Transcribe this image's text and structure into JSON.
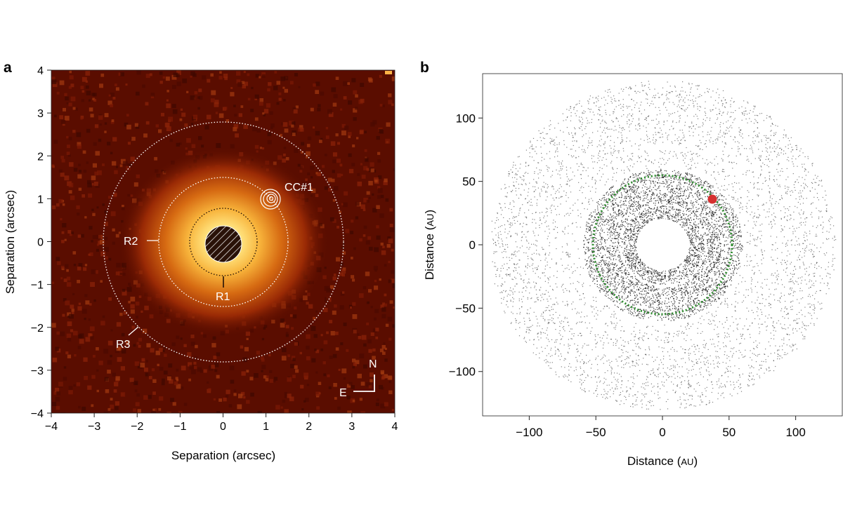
{
  "panel_a": {
    "letter": "a",
    "xlabel": "Separation (arcsec)",
    "ylabel": "Separation (arcsec)",
    "ticks": [
      "−4",
      "−3",
      "−2",
      "−1",
      "0",
      "1",
      "2",
      "3",
      "4"
    ],
    "tick_values": [
      -4,
      -3,
      -2,
      -1,
      0,
      1,
      2,
      3,
      4
    ],
    "ring_labels": {
      "r1": "R1",
      "r2": "R2",
      "r3": "R3"
    },
    "companion_label": "CC#1",
    "compass": {
      "north": "N",
      "east": "E"
    },
    "colors": {
      "background": "#5a0d00",
      "glow_inner": "#ffd46a",
      "glow_mid": "#e07a12",
      "rings": "#ffffff"
    }
  },
  "panel_b": {
    "letter": "b",
    "xlabel_prefix": "Distance (",
    "xlabel_unit": "AU",
    "xlabel_suffix": ")",
    "ylabel_prefix": "Distance (",
    "ylabel_unit": "AU",
    "ylabel_suffix": ")",
    "xticks": [
      "−100",
      "−50",
      "0",
      "50",
      "100"
    ],
    "xtick_values": [
      -100,
      -50,
      0,
      50,
      100
    ],
    "yticks": [
      "100",
      "50",
      "0",
      "−50",
      "−100"
    ],
    "ytick_values": [
      100,
      50,
      0,
      -50,
      -100
    ],
    "colors": {
      "particles": "#1a1a1a",
      "orbit": "#2e8b2e",
      "planet": "#d63030"
    }
  },
  "chart_data": [
    {
      "type": "scatter",
      "title": "",
      "xlabel": "Separation (arcsec)",
      "ylabel": "Separation (arcsec)",
      "xlim": [
        -4,
        4
      ],
      "ylim": [
        -4,
        4
      ],
      "ring_radii_arcsec": {
        "R1": 0.75,
        "R2": 1.5,
        "R3": 2.8
      },
      "companion": {
        "label": "CC#1",
        "x": 1.1,
        "y": 1.0
      },
      "masked_core_radius_arcsec": 0.4,
      "grid": false
    },
    {
      "type": "scatter",
      "title": "",
      "xlabel": "Distance (AU)",
      "ylabel": "Distance (AU)",
      "xlim": [
        -135,
        135
      ],
      "ylim": [
        -135,
        135
      ],
      "disk_outer_radius_au": 130,
      "inner_hole_radius_au": 19,
      "planet": {
        "x": 37,
        "y": 36
      },
      "planet_orbit_radius_au": 52,
      "grid": false
    }
  ]
}
